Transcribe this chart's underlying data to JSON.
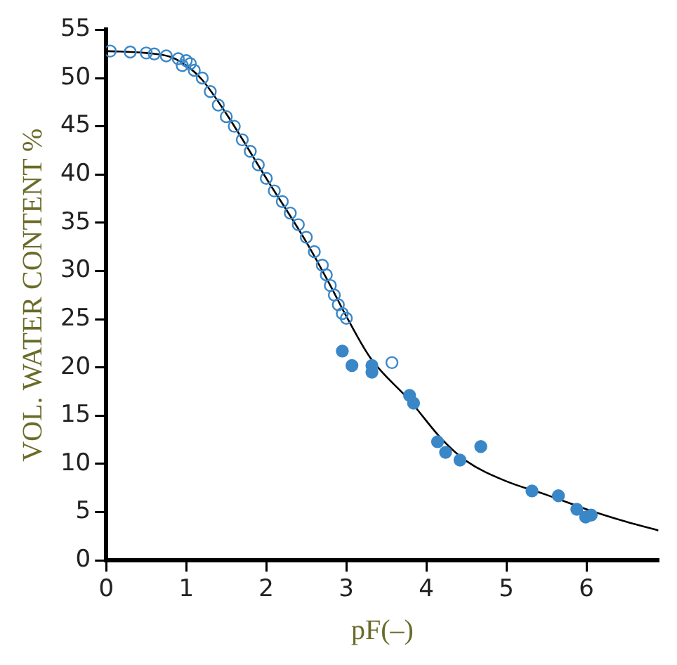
{
  "chart_data": {
    "type": "scatter",
    "xlabel": "pF(–)",
    "ylabel": "VOL. WATER CONTENT %",
    "xlim": [
      0,
      6.9
    ],
    "ylim": [
      0,
      55
    ],
    "xticks": [
      0,
      1,
      2,
      3,
      4,
      5,
      6
    ],
    "yticks": [
      0,
      5,
      10,
      15,
      20,
      25,
      30,
      35,
      40,
      45,
      50,
      55
    ],
    "grid": false,
    "legend": false,
    "series": [
      {
        "marker": "circle-open",
        "color": "#3a87c8",
        "x": [
          0.05,
          0.3,
          0.5,
          0.6,
          0.75,
          0.9,
          0.95,
          1.0,
          1.05,
          1.1,
          1.2,
          1.3,
          1.4,
          1.5,
          1.6,
          1.7,
          1.8,
          1.9,
          2.0,
          2.1,
          2.2,
          2.3,
          2.4,
          2.5,
          2.6,
          2.7,
          2.75,
          2.8,
          2.85,
          2.9,
          2.95,
          3.0,
          3.57
        ],
        "values": [
          52.8,
          52.7,
          52.6,
          52.5,
          52.3,
          52,
          51.3,
          51.8,
          51.5,
          50.8,
          50,
          48.6,
          47.2,
          46,
          45,
          43.6,
          42.4,
          41,
          39.6,
          38.3,
          37.2,
          36,
          34.8,
          33.5,
          32,
          30.6,
          29.6,
          28.5,
          27.5,
          26.5,
          25.6,
          25.1,
          20.5
        ]
      },
      {
        "marker": "circle",
        "color": "#3a87c8",
        "x": [
          2.95,
          3.07,
          3.32,
          3.32,
          3.79,
          3.84,
          4.14,
          4.24,
          4.42,
          4.68,
          5.32,
          5.65,
          5.88,
          5.99,
          6.06
        ],
        "values": [
          21.7,
          20.2,
          20.2,
          19.5,
          17.1,
          16.3,
          12.3,
          11.2,
          10.4,
          11.8,
          7.2,
          6.7,
          5.3,
          4.5,
          4.7
        ]
      },
      {
        "type": "line",
        "marker": "none",
        "color": "#000000",
        "x": [
          0,
          0.5,
          0.8,
          1.0,
          1.2,
          1.5,
          2.0,
          2.5,
          2.8,
          3.0,
          3.3,
          3.8,
          4.2,
          4.5,
          5.0,
          5.5,
          6.0,
          6.5,
          6.9
        ],
        "values": [
          52.8,
          52.6,
          52.2,
          51.3,
          49.8,
          46.3,
          39.6,
          33,
          28.5,
          25.3,
          21,
          16.5,
          12.5,
          10.3,
          8.2,
          6.8,
          5.3,
          4.0,
          3.1
        ]
      }
    ]
  }
}
